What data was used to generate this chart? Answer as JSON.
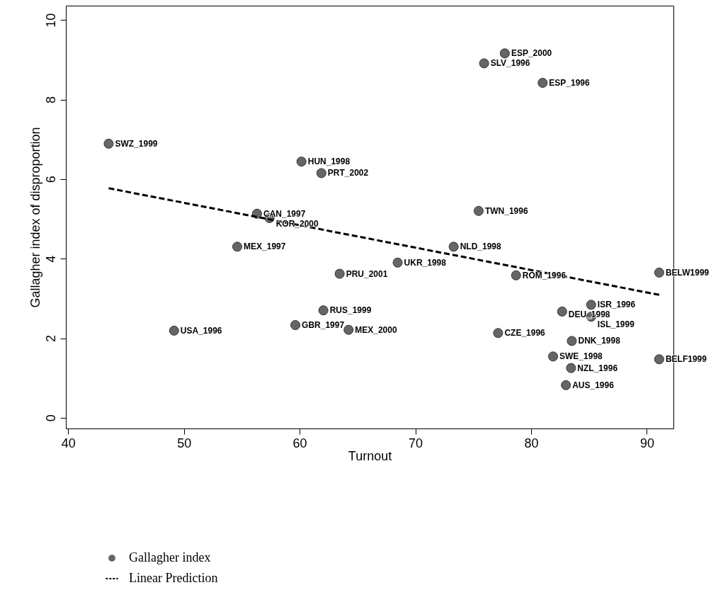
{
  "chart_data": {
    "type": "scatter",
    "xlabel": "Turnout",
    "ylabel": "Gallagher index of disproportion",
    "xlim": [
      39.8,
      92.3
    ],
    "ylim": [
      -0.27,
      10.36
    ],
    "xticks": [
      40,
      50,
      60,
      70,
      80,
      90
    ],
    "yticks": [
      0,
      2,
      4,
      6,
      8,
      10
    ],
    "grid": false,
    "legend": "bottom left",
    "series": [
      {
        "name": "Gallagher index",
        "marker": "circle",
        "color": "#666666",
        "x": [
          43.5,
          60.16,
          61.88,
          56.32,
          57.4,
          54.61,
          63.46,
          62.05,
          59.63,
          64.23,
          49.15,
          77.73,
          75.94,
          81.0,
          75.47,
          73.31,
          68.47,
          78.7,
          91.07,
          85.19,
          82.68,
          85.19,
          77.15,
          83.52,
          81.9,
          91.07,
          83.45,
          83.01
        ],
        "values": [
          6.89,
          6.44,
          6.15,
          5.13,
          5.02,
          4.3,
          3.62,
          2.7,
          2.33,
          2.21,
          2.19,
          9.16,
          8.91,
          8.42,
          5.2,
          4.3,
          3.9,
          3.58,
          3.65,
          2.84,
          2.67,
          2.54,
          2.13,
          1.93,
          1.54,
          1.47,
          1.25,
          0.82
        ]
      },
      {
        "name": "Linear Prediction",
        "type": "line",
        "line_style": "dashed",
        "color": "#000000",
        "x": [
          43.5,
          91.07
        ],
        "values": [
          5.77,
          3.09
        ]
      }
    ],
    "annotations": [
      {
        "text": "SWZ_1999",
        "x": 43.5,
        "y": 6.89
      },
      {
        "text": "HUN_1998",
        "x": 60.16,
        "y": 6.44
      },
      {
        "text": "PRT_2002",
        "x": 61.88,
        "y": 6.15
      },
      {
        "text": "CAN_1997",
        "x": 56.32,
        "y": 5.13
      },
      {
        "text": "KOR_2000",
        "x": 57.4,
        "y": 5.02
      },
      {
        "text": "MEX_1997",
        "x": 54.61,
        "y": 4.3
      },
      {
        "text": "PRU_2001",
        "x": 63.46,
        "y": 3.62
      },
      {
        "text": "RUS_1999",
        "x": 62.05,
        "y": 2.7
      },
      {
        "text": "GBR_1997",
        "x": 59.63,
        "y": 2.33
      },
      {
        "text": "MEX_2000",
        "x": 64.23,
        "y": 2.21
      },
      {
        "text": "USA_1996",
        "x": 49.15,
        "y": 2.19
      },
      {
        "text": "ESP_2000",
        "x": 77.73,
        "y": 9.16
      },
      {
        "text": "SLV_1996",
        "x": 75.94,
        "y": 8.91
      },
      {
        "text": "ESP_1996",
        "x": 81.0,
        "y": 8.42
      },
      {
        "text": "TWN_1996",
        "x": 75.47,
        "y": 5.2
      },
      {
        "text": "NLD_1998",
        "x": 73.31,
        "y": 4.3
      },
      {
        "text": "UKR_1998",
        "x": 68.47,
        "y": 3.9
      },
      {
        "text": "ROM_1996",
        "x": 78.7,
        "y": 3.58
      },
      {
        "text": "BELW1999",
        "x": 91.07,
        "y": 3.65
      },
      {
        "text": "ISR_1996",
        "x": 85.19,
        "y": 2.84
      },
      {
        "text": "DEU_1998",
        "x": 82.68,
        "y": 2.67
      },
      {
        "text": "ISL_1999",
        "x": 85.19,
        "y": 2.54
      },
      {
        "text": "CZE_1996",
        "x": 77.15,
        "y": 2.13
      },
      {
        "text": "DNK_1998",
        "x": 83.52,
        "y": 1.93
      },
      {
        "text": "SWE_1998",
        "x": 81.9,
        "y": 1.54
      },
      {
        "text": "BELF1999",
        "x": 91.07,
        "y": 1.47
      },
      {
        "text": "NZL_1996",
        "x": 83.45,
        "y": 1.25
      },
      {
        "text": "AUS_1996",
        "x": 83.01,
        "y": 0.82
      }
    ]
  }
}
